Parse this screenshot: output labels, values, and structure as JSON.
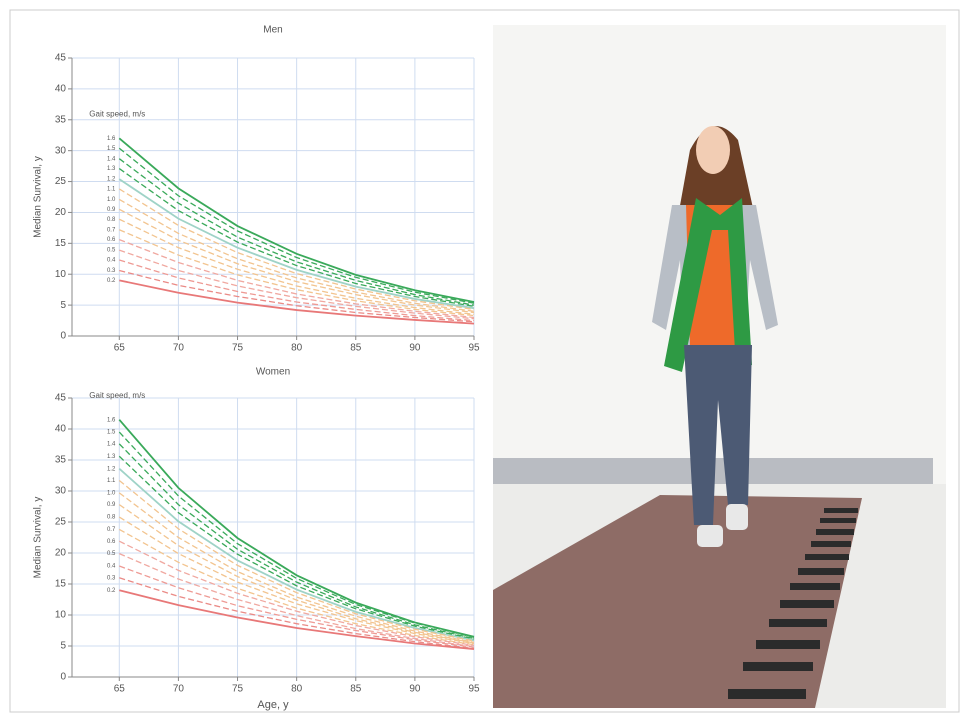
{
  "chart_data": [
    {
      "type": "line",
      "title": "Men",
      "y_label": "Median Survival, y",
      "legend_title": "Gait speed, m/s",
      "x": [
        65,
        70,
        75,
        80,
        85,
        90,
        95
      ],
      "xlim": [
        61,
        95
      ],
      "xticks": [
        65,
        70,
        75,
        80,
        85,
        90,
        95
      ],
      "ylim": [
        0,
        45
      ],
      "yticks": [
        0,
        5,
        10,
        15,
        20,
        25,
        30,
        35,
        40,
        45
      ],
      "grid": true,
      "series": [
        {
          "name": "1.6",
          "color": "#3aa95a",
          "dashed": false,
          "values": [
            32,
            23.9,
            17.8,
            13.3,
            9.9,
            7.4,
            5.5
          ]
        },
        {
          "name": "1.5",
          "color": "#3aa95a",
          "dashed": true,
          "values": [
            30.4,
            22.7,
            17.0,
            12.7,
            9.5,
            7.1,
            5.3
          ]
        },
        {
          "name": "1.4",
          "color": "#3aa95a",
          "dashed": true,
          "values": [
            28.7,
            21.5,
            16.0,
            12.0,
            9.0,
            6.7,
            5.0
          ]
        },
        {
          "name": "1.3",
          "color": "#3aa95a",
          "dashed": true,
          "values": [
            27.1,
            20.3,
            15.2,
            11.4,
            8.5,
            6.4,
            4.8
          ]
        },
        {
          "name": "1.2",
          "color": "#9fd3c7",
          "dashed": false,
          "values": [
            25.4,
            19.0,
            14.3,
            10.7,
            8.0,
            6.0,
            4.5
          ]
        },
        {
          "name": "1.1",
          "color": "#f2c48f",
          "dashed": true,
          "values": [
            23.8,
            17.9,
            13.5,
            10.1,
            7.6,
            5.7,
            4.3
          ]
        },
        {
          "name": "1.0",
          "color": "#f2c48f",
          "dashed": true,
          "values": [
            22.1,
            16.6,
            12.5,
            9.4,
            7.1,
            5.3,
            4.0
          ]
        },
        {
          "name": "0.9",
          "color": "#f2c48f",
          "dashed": true,
          "values": [
            20.5,
            15.5,
            11.7,
            8.8,
            6.7,
            5.0,
            3.8
          ]
        },
        {
          "name": "0.8",
          "color": "#f2c48f",
          "dashed": true,
          "values": [
            18.9,
            14.3,
            10.8,
            8.1,
            6.1,
            4.6,
            3.5
          ]
        },
        {
          "name": "0.7",
          "color": "#f2c48f",
          "dashed": true,
          "values": [
            17.2,
            13.1,
            9.9,
            7.5,
            5.7,
            4.3,
            3.3
          ]
        },
        {
          "name": "0.6",
          "color": "#f0a8a0",
          "dashed": true,
          "values": [
            15.6,
            11.9,
            9.0,
            6.8,
            5.2,
            4.0,
            3.0
          ]
        },
        {
          "name": "0.5",
          "color": "#f0a8a0",
          "dashed": true,
          "values": [
            13.9,
            10.6,
            8.1,
            6.2,
            4.8,
            3.7,
            2.8
          ]
        },
        {
          "name": "0.4",
          "color": "#ee9a94",
          "dashed": true,
          "values": [
            12.3,
            9.4,
            7.2,
            5.5,
            4.3,
            3.3,
            2.5
          ]
        },
        {
          "name": "0.3",
          "color": "#ea8a86",
          "dashed": true,
          "values": [
            10.6,
            8.2,
            6.4,
            4.9,
            3.8,
            3.0,
            2.3
          ]
        },
        {
          "name": "0.2",
          "color": "#e87878",
          "dashed": false,
          "values": [
            9,
            7.0,
            5.4,
            4.2,
            3.3,
            2.6,
            2.0
          ]
        }
      ]
    },
    {
      "type": "line",
      "title": "Women",
      "y_label": "Median Survival, y",
      "x_label": "Age, y",
      "legend_title": "Gait speed, m/s",
      "x": [
        65,
        70,
        75,
        80,
        85,
        90,
        95
      ],
      "xlim": [
        61,
        95
      ],
      "xticks": [
        65,
        70,
        75,
        80,
        85,
        90,
        95
      ],
      "ylim": [
        0,
        45
      ],
      "yticks": [
        0,
        5,
        10,
        15,
        20,
        25,
        30,
        35,
        40,
        45
      ],
      "grid": true,
      "series": [
        {
          "name": "1.6",
          "color": "#3aa95a",
          "dashed": false,
          "values": [
            41.5,
            30.5,
            22.4,
            16.4,
            12.0,
            8.8,
            6.5
          ]
        },
        {
          "name": "1.5",
          "color": "#3aa95a",
          "dashed": true,
          "values": [
            39.5,
            29.2,
            21.5,
            15.9,
            11.7,
            8.7,
            6.4
          ]
        },
        {
          "name": "1.4",
          "color": "#3aa95a",
          "dashed": true,
          "values": [
            37.6,
            27.8,
            20.6,
            15.3,
            11.3,
            8.4,
            6.2
          ]
        },
        {
          "name": "1.3",
          "color": "#3aa95a",
          "dashed": true,
          "values": [
            35.6,
            26.5,
            19.8,
            14.7,
            11.0,
            8.2,
            6.1
          ]
        },
        {
          "name": "1.2",
          "color": "#9fd3c7",
          "dashed": false,
          "values": [
            33.6,
            25.1,
            18.8,
            14.1,
            10.5,
            7.9,
            5.9
          ]
        },
        {
          "name": "1.1",
          "color": "#f2c48f",
          "dashed": true,
          "values": [
            31.7,
            23.9,
            18.0,
            13.6,
            10.2,
            7.7,
            5.8
          ]
        },
        {
          "name": "1.0",
          "color": "#f2c48f",
          "dashed": true,
          "values": [
            29.7,
            22.5,
            17.0,
            12.9,
            9.8,
            7.4,
            5.6
          ]
        },
        {
          "name": "0.9",
          "color": "#f2c48f",
          "dashed": true,
          "values": [
            27.8,
            21.2,
            16.2,
            12.4,
            9.4,
            7.2,
            5.5
          ]
        },
        {
          "name": "0.8",
          "color": "#f2c48f",
          "dashed": true,
          "values": [
            25.8,
            19.9,
            15.3,
            11.8,
            9.1,
            7.0,
            5.4
          ]
        },
        {
          "name": "0.7",
          "color": "#f2c48f",
          "dashed": true,
          "values": [
            23.8,
            18.5,
            14.3,
            11.1,
            8.6,
            6.7,
            5.2
          ]
        },
        {
          "name": "0.6",
          "color": "#f0a8a0",
          "dashed": true,
          "values": [
            21.9,
            17.2,
            13.5,
            10.6,
            8.3,
            6.5,
            5.1
          ]
        },
        {
          "name": "0.5",
          "color": "#f0a8a0",
          "dashed": true,
          "values": [
            19.9,
            15.8,
            12.5,
            9.9,
            7.8,
            6.2,
            4.9
          ]
        },
        {
          "name": "0.4",
          "color": "#ee9a94",
          "dashed": true,
          "values": [
            17.9,
            14.4,
            11.5,
            9.3,
            7.5,
            6.0,
            4.8
          ]
        },
        {
          "name": "0.3",
          "color": "#ea8a86",
          "dashed": true,
          "values": [
            16.0,
            13.0,
            10.6,
            8.6,
            7.0,
            5.7,
            4.6
          ]
        },
        {
          "name": "0.2",
          "color": "#e87878",
          "dashed": false,
          "values": [
            14.0,
            11.6,
            9.6,
            7.9,
            6.6,
            5.4,
            4.5
          ]
        }
      ]
    }
  ]
}
